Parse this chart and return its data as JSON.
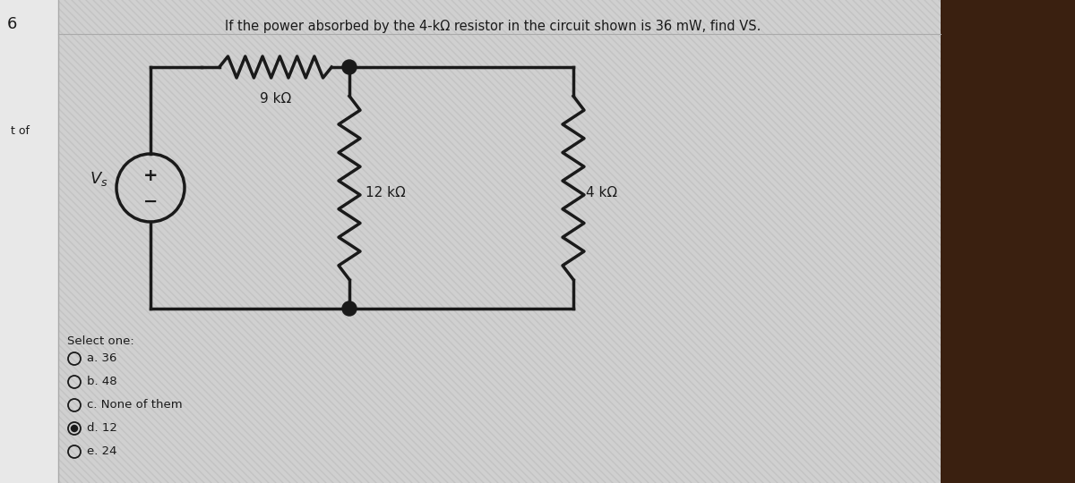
{
  "title": "If the power absorbed by the 4-kΩ resistor in the circuit shown is 36 mW, find VS.",
  "title_fontsize": 10.5,
  "bg_color": "#d0d0d0",
  "stripe_color": "#bebebe",
  "circuit_color": "#1a1a1a",
  "question_number": "6",
  "tof_label": "t of",
  "select_one_label": "Select one:",
  "options": [
    {
      "label": "a. 36",
      "selected": false
    },
    {
      "label": "b. 48",
      "selected": false
    },
    {
      "label": "c. None of them",
      "selected": false
    },
    {
      "label": "d. 12",
      "selected": true
    },
    {
      "label": "e. 24",
      "selected": false
    }
  ],
  "vs_label": "Vs",
  "r9_label": "9 kΩ",
  "r12_label": "12 kΩ",
  "r4_label": "4 kΩ",
  "left_panel_color": "#e8e8e8",
  "right_panel_color": "#3a2010",
  "circuit_bg": "#ffffff",
  "circuit_lw": 2.5
}
